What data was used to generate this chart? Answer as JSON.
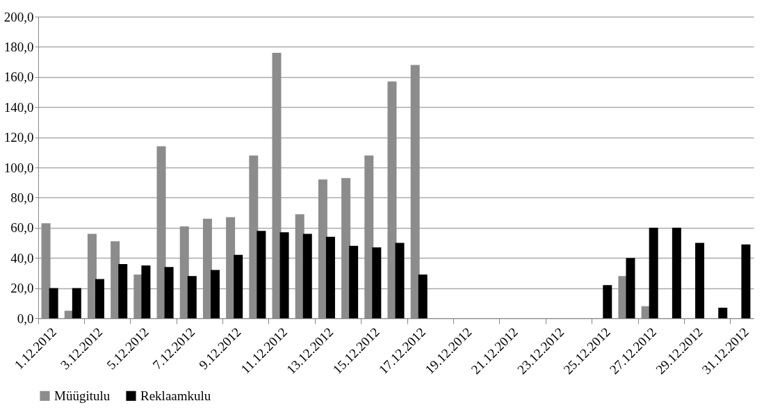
{
  "chart_data": {
    "type": "bar",
    "categories": [
      "1.12.2012",
      null,
      "3.12.2012",
      null,
      "5.12.2012",
      null,
      "7.12.2012",
      null,
      "9.12.2012",
      null,
      "11.12.2012",
      null,
      "13.12.2012",
      null,
      "15.12.2012",
      null,
      "17.12.2012",
      null,
      "19.12.2012",
      null,
      "21.12.2012",
      null,
      "23.12.2012",
      null,
      "25.12.2012",
      null,
      "27.12.2012",
      null,
      "29.12.2012",
      null,
      "31.12.2012"
    ],
    "series": [
      {
        "name": "Müügitulu",
        "color": "#8c8c8c",
        "values": [
          63,
          5,
          56,
          51,
          29,
          114,
          61,
          66,
          67,
          108,
          176,
          69,
          92,
          93,
          108,
          157,
          168,
          null,
          null,
          null,
          null,
          null,
          null,
          null,
          null,
          28,
          8,
          null,
          null,
          null,
          null
        ]
      },
      {
        "name": "Reklaamkulu",
        "color": "#000000",
        "values": [
          20,
          20,
          26,
          36,
          35,
          34,
          28,
          32,
          42,
          58,
          57,
          56,
          54,
          48,
          47,
          50,
          29,
          null,
          null,
          null,
          null,
          null,
          null,
          null,
          22,
          40,
          60,
          60,
          50,
          7,
          49
        ]
      }
    ],
    "ylim": [
      0,
      200
    ],
    "yticks": [
      {
        "value": 0,
        "label": "0,0"
      },
      {
        "value": 20,
        "label": "20,0"
      },
      {
        "value": 40,
        "label": "40,0"
      },
      {
        "value": 60,
        "label": "60,0"
      },
      {
        "value": 80,
        "label": "80,0"
      },
      {
        "value": 100,
        "label": "100,0"
      },
      {
        "value": 120,
        "label": "120,0"
      },
      {
        "value": 140,
        "label": "140,0"
      },
      {
        "value": 160,
        "label": "160,0"
      },
      {
        "value": 180,
        "label": "180,0"
      },
      {
        "value": 200,
        "label": "200,0"
      }
    ],
    "grid": "y",
    "legend": "bottom"
  }
}
